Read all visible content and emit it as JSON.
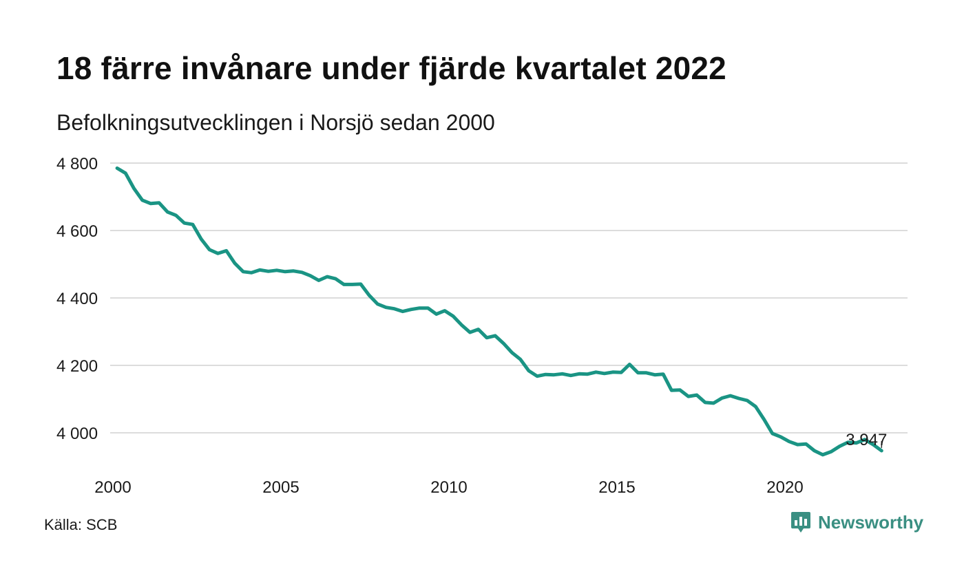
{
  "header": {
    "title": "18 färre invånare under fjärde kvartalet 2022",
    "subtitle": "Befolkningsutvecklingen i Norsjö sedan 2000"
  },
  "footer": {
    "source": "Källa: SCB",
    "brand": "Newsworthy",
    "brand_icon": "newsworthy-logo-icon"
  },
  "colors": {
    "line": "#1a9484",
    "grid": "#dcdcdc",
    "brand": "#3a8f82"
  },
  "chart_data": {
    "type": "line",
    "title": "18 färre invånare under fjärde kvartalet 2022",
    "subtitle": "Befolkningsutvecklingen i Norsjö sedan 2000",
    "xlabel": "",
    "ylabel": "",
    "xlim": [
      2000,
      2023
    ],
    "ylim": [
      3900,
      4800
    ],
    "x_ticks": [
      2000,
      2005,
      2010,
      2015,
      2020
    ],
    "x_tick_labels": [
      "2000",
      "2005",
      "2010",
      "2015",
      "2020"
    ],
    "y_ticks": [
      4000,
      4200,
      4400,
      4600,
      4800
    ],
    "y_tick_labels": [
      "4 000",
      "4 200",
      "4 400",
      "4 600",
      "4 800"
    ],
    "grid": "horizontal",
    "legend": "none",
    "annotation": {
      "x": 2022.875,
      "y": 3947,
      "text": "3 947"
    },
    "series": [
      {
        "name": "",
        "x": [
          2000.125,
          2000.375,
          2000.625,
          2000.875,
          2001.125,
          2001.375,
          2001.625,
          2001.875,
          2002.125,
          2002.375,
          2002.625,
          2002.875,
          2003.125,
          2003.375,
          2003.625,
          2003.875,
          2004.125,
          2004.375,
          2004.625,
          2004.875,
          2005.125,
          2005.375,
          2005.625,
          2005.875,
          2006.125,
          2006.375,
          2006.625,
          2006.875,
          2007.125,
          2007.375,
          2007.625,
          2007.875,
          2008.125,
          2008.375,
          2008.625,
          2008.875,
          2009.125,
          2009.375,
          2009.625,
          2009.875,
          2010.125,
          2010.375,
          2010.625,
          2010.875,
          2011.125,
          2011.375,
          2011.625,
          2011.875,
          2012.125,
          2012.375,
          2012.625,
          2012.875,
          2013.125,
          2013.375,
          2013.625,
          2013.875,
          2014.125,
          2014.375,
          2014.625,
          2014.875,
          2015.125,
          2015.375,
          2015.625,
          2015.875,
          2016.125,
          2016.375,
          2016.625,
          2016.875,
          2017.125,
          2017.375,
          2017.625,
          2017.875,
          2018.125,
          2018.375,
          2018.625,
          2018.875,
          2019.125,
          2019.375,
          2019.625,
          2019.875,
          2020.125,
          2020.375,
          2020.625,
          2020.875,
          2021.125,
          2021.375,
          2021.625,
          2021.875,
          2022.125,
          2022.375,
          2022.625,
          2022.875
        ],
        "values": [
          4785,
          4770,
          4725,
          4690,
          4680,
          4682,
          4655,
          4645,
          4622,
          4618,
          4575,
          4543,
          4532,
          4540,
          4503,
          4478,
          4475,
          4483,
          4479,
          4482,
          4478,
          4480,
          4476,
          4466,
          4452,
          4463,
          4457,
          4440,
          4440,
          4441,
          4408,
          4382,
          4372,
          4368,
          4360,
          4366,
          4370,
          4370,
          4352,
          4362,
          4346,
          4320,
          4298,
          4307,
          4282,
          4288,
          4265,
          4238,
          4218,
          4184,
          4168,
          4173,
          4172,
          4175,
          4170,
          4175,
          4174,
          4180,
          4176,
          4180,
          4179,
          4203,
          4178,
          4178,
          4172,
          4174,
          4126,
          4127,
          4108,
          4112,
          4090,
          4088,
          4103,
          4110,
          4102,
          4096,
          4078,
          4040,
          3998,
          3988,
          3974,
          3965,
          3967,
          3947,
          3935,
          3944,
          3960,
          3972,
          3970,
          3980,
          3965,
          3947
        ]
      }
    ]
  }
}
